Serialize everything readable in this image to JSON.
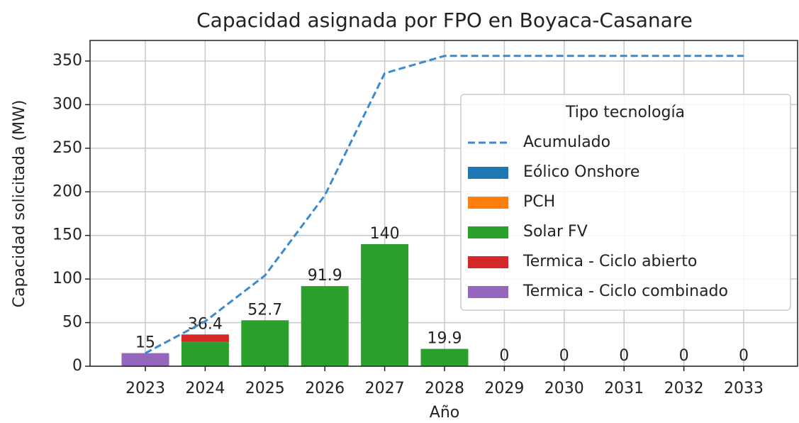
{
  "chart_data": {
    "type": "bar",
    "title": "Capacidad asignada por FPO en Boyaca-Casanare",
    "x_label": "Año",
    "y_label": "Capacidad solicitada (MW)",
    "legend_title": "Tipo tecnología",
    "legend": "upper right",
    "categories": [
      "2023",
      "2024",
      "2025",
      "2026",
      "2027",
      "2028",
      "2029",
      "2030",
      "2031",
      "2032",
      "2033"
    ],
    "line": {
      "name": "Acumulado",
      "color": "#3a8ad0",
      "values": [
        15,
        51.4,
        104.1,
        196,
        336,
        355.9,
        355.9,
        355.9,
        355.9,
        355.9,
        355.9
      ]
    },
    "series": [
      {
        "name": "Eólico Onshore",
        "color": "#1f77b4",
        "values": [
          0,
          0,
          0,
          0,
          0,
          0,
          0,
          0,
          0,
          0,
          0
        ]
      },
      {
        "name": "PCH",
        "color": "#ff7f0e",
        "values": [
          0,
          0,
          0,
          0,
          0,
          0,
          0,
          0,
          0,
          0,
          0
        ]
      },
      {
        "name": "Solar FV",
        "color": "#2ca02c",
        "values": [
          0,
          28,
          52.7,
          91.9,
          140,
          19.9,
          0,
          0,
          0,
          0,
          0
        ]
      },
      {
        "name": "Termica - Ciclo abierto",
        "color": "#d62728",
        "values": [
          0,
          8.4,
          0,
          0,
          0,
          0,
          0,
          0,
          0,
          0,
          0
        ]
      },
      {
        "name": "Termica - Ciclo combinado",
        "color": "#9467bd",
        "values": [
          15,
          0,
          0,
          0,
          0,
          0,
          0,
          0,
          0,
          0,
          0
        ]
      }
    ],
    "totals": [
      15,
      36.4,
      52.7,
      91.9,
      140,
      19.9,
      0,
      0,
      0,
      0,
      0
    ],
    "ylim": [
      0,
      373.6
    ],
    "yticks": [
      0,
      50,
      100,
      150,
      200,
      250,
      300,
      350
    ],
    "grid": true
  }
}
